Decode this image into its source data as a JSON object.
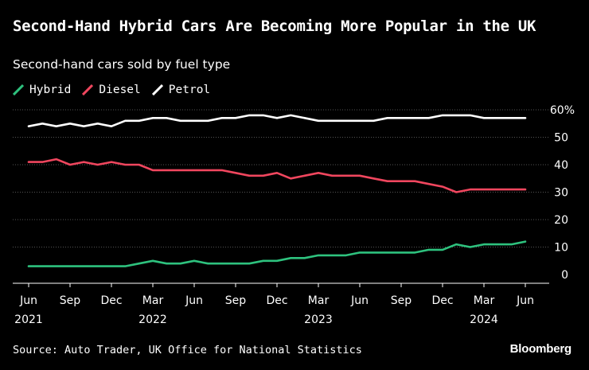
{
  "colors": {
    "hybrid": "#2ec27e",
    "diesel": "#f0465e",
    "petrol": "#ffffff",
    "grid": "#555555",
    "background": "#000000"
  },
  "footer": {
    "source": "Source: Auto Trader, UK Office for National Statistics",
    "brand": "Bloomberg"
  },
  "chart_data": {
    "type": "line",
    "title": "Second-Hand Hybrid Cars Are Becoming More Popular in the UK",
    "subtitle": "Second-hand cars sold by fuel type",
    "xlabel": "",
    "ylabel": "",
    "ylim": [
      0,
      60
    ],
    "yticks": [
      0,
      10,
      20,
      30,
      40,
      50
    ],
    "ytick_labels": [
      "0",
      "10",
      "20",
      "30",
      "40",
      "50"
    ],
    "ytop_label": "60%",
    "x_months": [
      "Jun 2021",
      "Jul 2021",
      "Aug 2021",
      "Sep 2021",
      "Oct 2021",
      "Nov 2021",
      "Dec 2021",
      "Jan 2022",
      "Feb 2022",
      "Mar 2022",
      "Apr 2022",
      "May 2022",
      "Jun 2022",
      "Jul 2022",
      "Aug 2022",
      "Sep 2022",
      "Oct 2022",
      "Nov 2022",
      "Dec 2022",
      "Jan 2023",
      "Feb 2023",
      "Mar 2023",
      "Apr 2023",
      "May 2023",
      "Jun 2023",
      "Jul 2023",
      "Aug 2023",
      "Sep 2023",
      "Oct 2023",
      "Nov 2023",
      "Dec 2023",
      "Jan 2024",
      "Feb 2024",
      "Mar 2024",
      "Apr 2024",
      "May 2024",
      "Jun 2024"
    ],
    "xticks": [
      {
        "index": 0,
        "label": "Jun",
        "year": "2021"
      },
      {
        "index": 3,
        "label": "Sep",
        "year": ""
      },
      {
        "index": 6,
        "label": "Dec",
        "year": ""
      },
      {
        "index": 9,
        "label": "Mar",
        "year": "2022"
      },
      {
        "index": 12,
        "label": "Jun",
        "year": ""
      },
      {
        "index": 15,
        "label": "Sep",
        "year": ""
      },
      {
        "index": 18,
        "label": "Dec",
        "year": ""
      },
      {
        "index": 21,
        "label": "Mar",
        "year": "2023"
      },
      {
        "index": 24,
        "label": "Jun",
        "year": ""
      },
      {
        "index": 27,
        "label": "Sep",
        "year": ""
      },
      {
        "index": 30,
        "label": "Dec",
        "year": ""
      },
      {
        "index": 33,
        "label": "Mar",
        "year": "2024"
      },
      {
        "index": 36,
        "label": "Jun",
        "year": ""
      }
    ],
    "series": [
      {
        "name": "Hybrid",
        "key": "hybrid",
        "values": [
          3,
          3,
          3,
          3,
          3,
          3,
          3,
          3,
          4,
          5,
          4,
          4,
          5,
          4,
          4,
          4,
          4,
          5,
          5,
          6,
          6,
          7,
          7,
          7,
          8,
          8,
          8,
          8,
          8,
          9,
          9,
          11,
          10,
          11,
          11,
          11,
          12
        ]
      },
      {
        "name": "Diesel",
        "key": "diesel",
        "values": [
          41,
          41,
          42,
          40,
          41,
          40,
          41,
          40,
          40,
          38,
          38,
          38,
          38,
          38,
          38,
          37,
          36,
          36,
          37,
          35,
          36,
          37,
          36,
          36,
          36,
          35,
          34,
          34,
          34,
          33,
          32,
          30,
          31,
          31,
          31,
          31,
          31
        ]
      },
      {
        "name": "Petrol",
        "key": "petrol",
        "values": [
          54,
          55,
          54,
          55,
          54,
          55,
          54,
          56,
          56,
          57,
          57,
          56,
          56,
          56,
          57,
          57,
          58,
          58,
          57,
          58,
          57,
          56,
          56,
          56,
          56,
          56,
          57,
          57,
          57,
          57,
          58,
          58,
          58,
          57,
          57,
          57,
          57
        ]
      }
    ],
    "legend": "top-left",
    "grid": true
  }
}
